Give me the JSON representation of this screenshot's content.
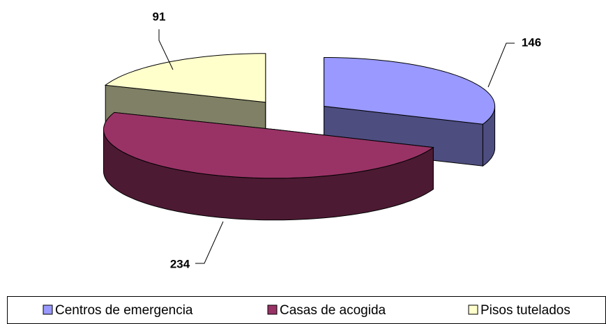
{
  "chart_data": {
    "type": "pie",
    "categories": [
      "Centros de emergencia",
      "Casas de acogida",
      "Pisos tutelados"
    ],
    "values": [
      146,
      234,
      91
    ],
    "colors": [
      "#9999ff",
      "#993366",
      "#ffffcc"
    ],
    "side_colors": [
      "#4d4d80",
      "#4d1a33",
      "#808066"
    ],
    "legend": "bottom"
  }
}
